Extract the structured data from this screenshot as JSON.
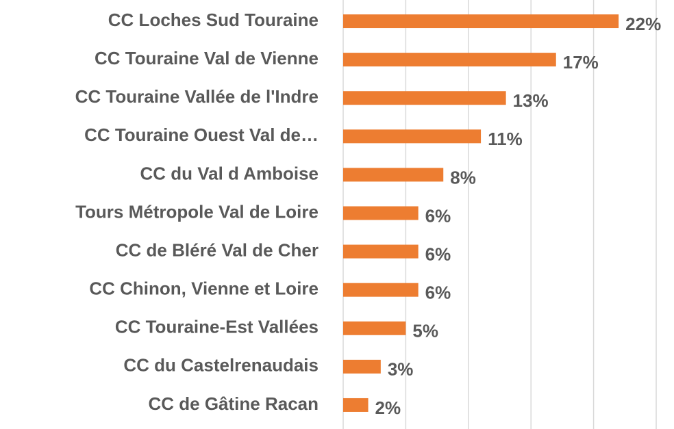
{
  "chart_data": {
    "type": "barh",
    "categories": [
      "CC Loches Sud Touraine",
      "CC Touraine Val de Vienne",
      "CC Touraine Vallée de l'Indre",
      "CC Touraine Ouest Val de…",
      "CC du Val d Amboise",
      "Tours Métropole Val de Loire",
      "CC de Bléré Val de Cher",
      "CC Chinon, Vienne et Loire",
      "CC Touraine-Est Vallées",
      "CC du Castelrenaudais",
      "CC de Gâtine Racan"
    ],
    "values": [
      22,
      17,
      13,
      11,
      8,
      6,
      6,
      6,
      5,
      3,
      2
    ],
    "value_labels": [
      "22%",
      "17%",
      "13%",
      "11%",
      "8%",
      "6%",
      "6%",
      "6%",
      "5%",
      "3%",
      "2%"
    ],
    "color": "#ed7d31",
    "xlim": [
      0,
      25
    ],
    "xticks": [
      0,
      5,
      10,
      15,
      20,
      25
    ],
    "grid": true
  }
}
